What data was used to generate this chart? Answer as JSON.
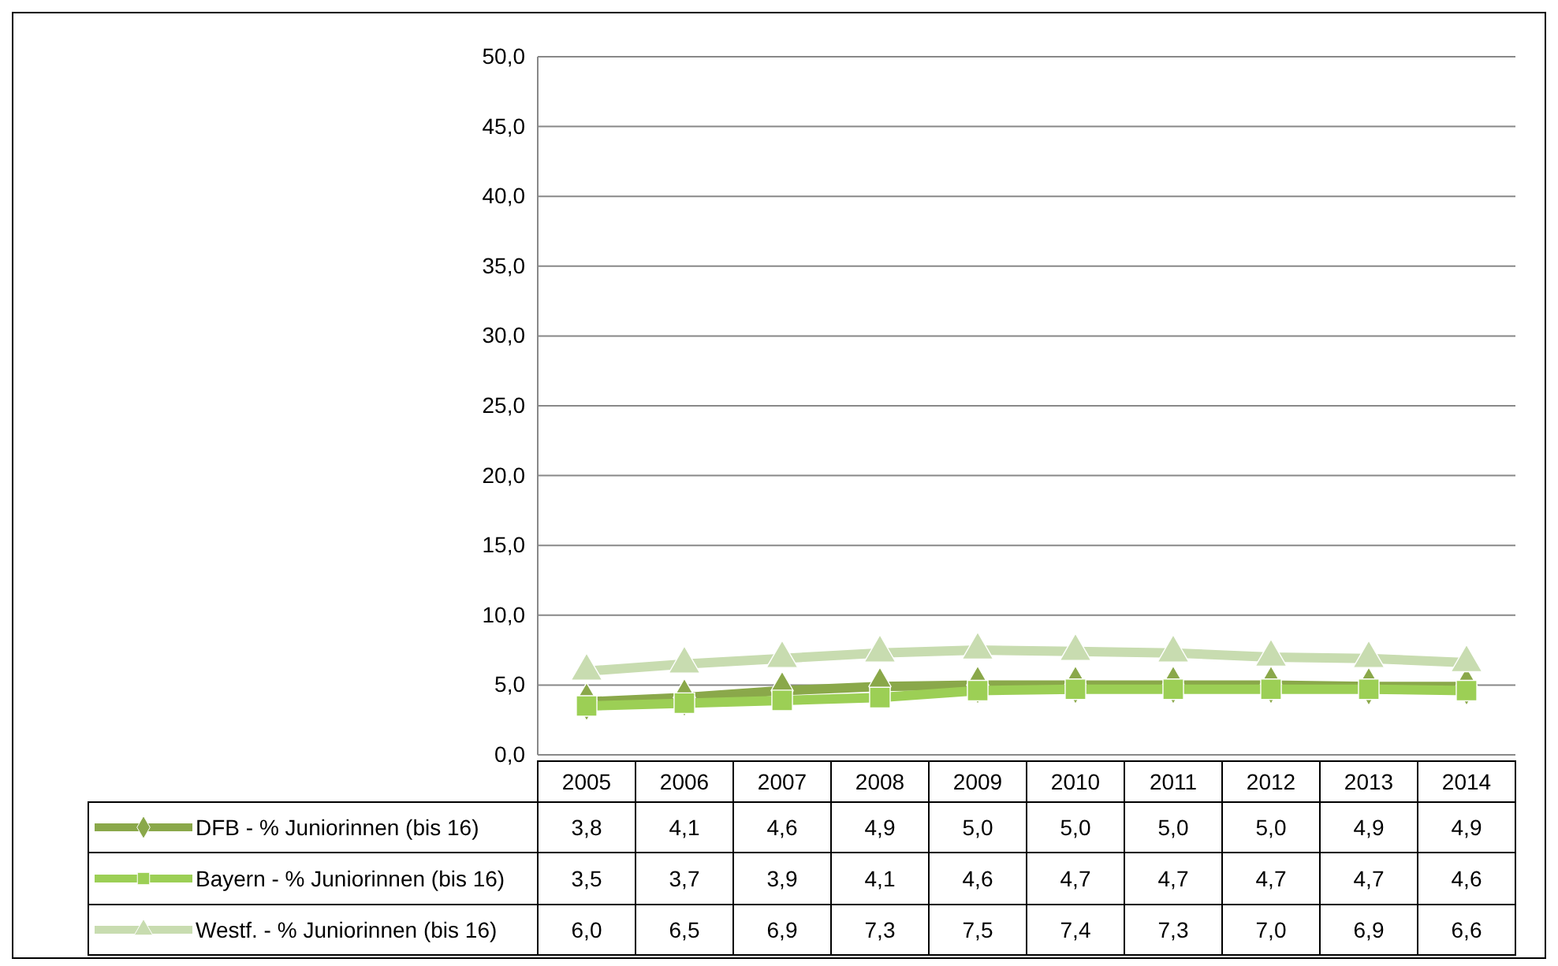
{
  "chart_data": {
    "type": "line",
    "categories": [
      "2005",
      "2006",
      "2007",
      "2008",
      "2009",
      "2010",
      "2011",
      "2012",
      "2013",
      "2014"
    ],
    "series": [
      {
        "name": "DFB - % Juniorinnen (bis 16)",
        "color": "#8aa84a",
        "marker": "diamond",
        "values": [
          3.8,
          4.1,
          4.6,
          4.9,
          5.0,
          5.0,
          5.0,
          5.0,
          4.9,
          4.9
        ],
        "value_labels": [
          "3,8",
          "4,1",
          "4,6",
          "4,9",
          "5,0",
          "5,0",
          "5,0",
          "5,0",
          "4,9",
          "4,9"
        ]
      },
      {
        "name": "Bayern - % Juniorinnen (bis 16)",
        "color": "#9ccf55",
        "marker": "square",
        "values": [
          3.5,
          3.7,
          3.9,
          4.1,
          4.6,
          4.7,
          4.7,
          4.7,
          4.7,
          4.6
        ],
        "value_labels": [
          "3,5",
          "3,7",
          "3,9",
          "4,1",
          "4,6",
          "4,7",
          "4,7",
          "4,7",
          "4,7",
          "4,6"
        ]
      },
      {
        "name": "Westf. - % Juniorinnen (bis 16)",
        "color": "#c8dcb0",
        "marker": "triangle",
        "values": [
          6.0,
          6.5,
          6.9,
          7.3,
          7.5,
          7.4,
          7.3,
          7.0,
          6.9,
          6.6
        ],
        "value_labels": [
          "6,0",
          "6,5",
          "6,9",
          "7,3",
          "7,5",
          "7,4",
          "7,3",
          "7,0",
          "6,9",
          "6,6"
        ]
      }
    ],
    "ylim": [
      0,
      50
    ],
    "yticks": [
      {
        "value": 0,
        "label": "0,0"
      },
      {
        "value": 5,
        "label": "5,0"
      },
      {
        "value": 10,
        "label": "10,0"
      },
      {
        "value": 15,
        "label": "15,0"
      },
      {
        "value": 20,
        "label": "20,0"
      },
      {
        "value": 25,
        "label": "25,0"
      },
      {
        "value": 30,
        "label": "30,0"
      },
      {
        "value": 35,
        "label": "35,0"
      },
      {
        "value": 40,
        "label": "40,0"
      },
      {
        "value": 45,
        "label": "45,0"
      },
      {
        "value": 50,
        "label": "50,0"
      }
    ],
    "grid": "y",
    "legend": "bottom",
    "line_style": "solid"
  }
}
